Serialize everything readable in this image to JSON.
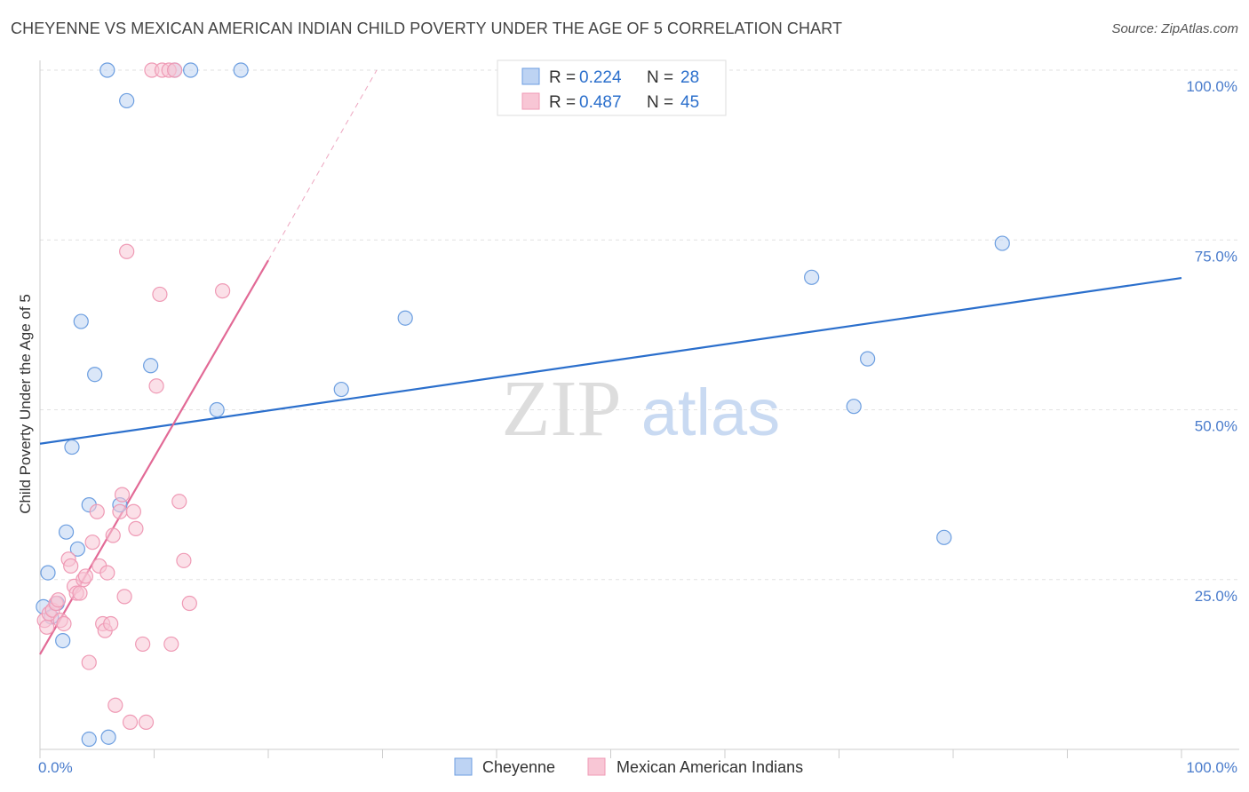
{
  "title": "CHEYENNE VS MEXICAN AMERICAN INDIAN CHILD POVERTY UNDER THE AGE OF 5 CORRELATION CHART",
  "source": "Source: ZipAtlas.com",
  "watermark": {
    "zip": "ZIP",
    "atlas": "atlas"
  },
  "chart_data": {
    "type": "scatter",
    "title": "CHEYENNE VS MEXICAN AMERICAN INDIAN CHILD POVERTY UNDER THE AGE OF 5 CORRELATION CHART",
    "xlabel": "",
    "ylabel": "Child Poverty Under the Age of 5",
    "xlim": [
      0,
      100
    ],
    "ylim": [
      0,
      100
    ],
    "x_tick_labels": [
      {
        "value": 0,
        "label": "0.0%"
      },
      {
        "value": 100,
        "label": "100.0%"
      }
    ],
    "y_tick_labels": [
      {
        "value": 25,
        "label": "25.0%"
      },
      {
        "value": 50,
        "label": "50.0%"
      },
      {
        "value": 75,
        "label": "75.0%"
      },
      {
        "value": 100,
        "label": "100.0%"
      }
    ],
    "grid": true,
    "legend_position": "top-center",
    "series": [
      {
        "name": "Cheyenne",
        "color": "#6c9ee0",
        "fill": "#bdd3f3",
        "line_color": "#2b6fcc",
        "R": "0.224",
        "N": "28",
        "trend": {
          "x0": 0,
          "y0": 45.0,
          "x1": 100,
          "y1": 69.4
        },
        "points": [
          [
            0.3,
            21.0
          ],
          [
            0.7,
            26.0
          ],
          [
            1.0,
            19.5
          ],
          [
            1.5,
            21.5
          ],
          [
            2.0,
            16.0
          ],
          [
            2.3,
            32.0
          ],
          [
            2.8,
            44.5
          ],
          [
            3.3,
            29.5
          ],
          [
            4.3,
            36.0
          ],
          [
            4.8,
            55.2
          ],
          [
            3.6,
            63.0
          ],
          [
            5.9,
            100.0
          ],
          [
            7.6,
            95.5
          ],
          [
            6.0,
            1.8
          ],
          [
            4.3,
            1.5
          ],
          [
            7.0,
            36.0
          ],
          [
            9.7,
            56.5
          ],
          [
            11.8,
            100.0
          ],
          [
            13.2,
            100.0
          ],
          [
            15.5,
            50.0
          ],
          [
            17.6,
            100.0
          ],
          [
            26.4,
            53.0
          ],
          [
            32.0,
            63.5
          ],
          [
            67.6,
            69.5
          ],
          [
            71.3,
            50.5
          ],
          [
            72.5,
            57.5
          ],
          [
            79.2,
            31.2
          ],
          [
            84.3,
            74.5
          ]
        ]
      },
      {
        "name": "Mexican American Indians",
        "color": "#ef9ab5",
        "fill": "#f8c6d5",
        "line_color": "#e26a96",
        "R": "0.487",
        "N": "45",
        "trend": {
          "x0": 0,
          "y0": 14.0,
          "x1": 20,
          "y1": 72.0
        },
        "trend_ext": {
          "x0": 20,
          "y0": 72.0,
          "x1": 29.5,
          "y1": 100.0
        },
        "points": [
          [
            0.4,
            19.0
          ],
          [
            0.6,
            18.0
          ],
          [
            0.8,
            20.0
          ],
          [
            1.1,
            20.5
          ],
          [
            1.4,
            21.5
          ],
          [
            1.6,
            22.0
          ],
          [
            1.8,
            19.0
          ],
          [
            2.1,
            18.5
          ],
          [
            2.5,
            28.0
          ],
          [
            2.7,
            27.0
          ],
          [
            3.0,
            24.0
          ],
          [
            3.2,
            23.0
          ],
          [
            3.5,
            23.0
          ],
          [
            3.8,
            25.0
          ],
          [
            4.0,
            25.5
          ],
          [
            4.3,
            12.8
          ],
          [
            4.6,
            30.5
          ],
          [
            5.0,
            35.0
          ],
          [
            5.2,
            27.0
          ],
          [
            5.5,
            18.5
          ],
          [
            5.7,
            17.5
          ],
          [
            5.9,
            26.0
          ],
          [
            6.2,
            18.5
          ],
          [
            6.4,
            31.5
          ],
          [
            6.6,
            6.5
          ],
          [
            7.0,
            35.0
          ],
          [
            7.2,
            37.5
          ],
          [
            7.4,
            22.5
          ],
          [
            7.6,
            73.3
          ],
          [
            7.9,
            4.0
          ],
          [
            8.2,
            35.0
          ],
          [
            8.4,
            32.5
          ],
          [
            9.0,
            15.5
          ],
          [
            9.3,
            4.0
          ],
          [
            9.8,
            100.0
          ],
          [
            10.2,
            53.5
          ],
          [
            10.5,
            67.0
          ],
          [
            10.7,
            100.0
          ],
          [
            11.3,
            100.0
          ],
          [
            11.5,
            15.5
          ],
          [
            11.8,
            100.0
          ],
          [
            12.2,
            36.5
          ],
          [
            12.6,
            27.8
          ],
          [
            13.1,
            21.5
          ],
          [
            16.0,
            67.5
          ]
        ]
      }
    ]
  }
}
